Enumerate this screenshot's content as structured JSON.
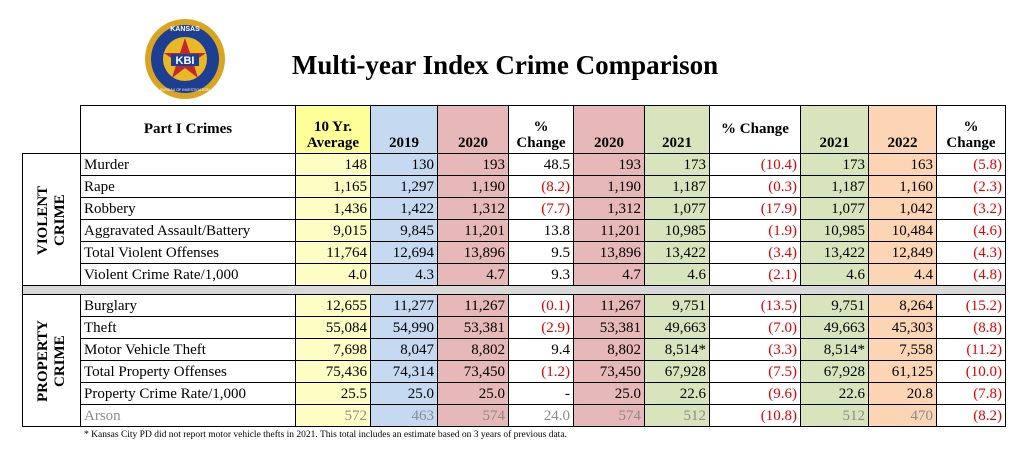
{
  "logo": {
    "top": "KANSAS",
    "abbr": "KBI",
    "bottom": "BUREAU OF INVESTIGATION"
  },
  "title": "Multi-year Index Crime Comparison",
  "table": {
    "header": [
      "Part I Crimes",
      "10 Yr. Average",
      "2019",
      "2020",
      "% Change",
      "2020",
      "2021",
      "% Change",
      "2021",
      "2022",
      "% Change"
    ],
    "groups": [
      {
        "label": "VIOLENT CRIME",
        "rows": [
          {
            "cells": [
              "Murder",
              "148",
              "130",
              "193",
              "48.5",
              "193",
              "173",
              "(10.4)",
              "173",
              "163",
              "(5.8)"
            ]
          },
          {
            "cells": [
              "Rape",
              "1,165",
              "1,297",
              "1,190",
              "(8.2)",
              "1,190",
              "1,187",
              "(0.3)",
              "1,187",
              "1,160",
              "(2.3)"
            ]
          },
          {
            "cells": [
              "Robbery",
              "1,436",
              "1,422",
              "1,312",
              "(7.7)",
              "1,312",
              "1,077",
              "(17.9)",
              "1,077",
              "1,042",
              "(3.2)"
            ]
          },
          {
            "cells": [
              "Aggravated Assault/Battery",
              "9,015",
              "9,845",
              "11,201",
              "13.8",
              "11,201",
              "10,985",
              "(1.9)",
              "10,985",
              "10,484",
              "(4.6)"
            ]
          },
          {
            "cells": [
              "Total Violent Offenses",
              "11,764",
              "12,694",
              "13,896",
              "9.5",
              "13,896",
              "13,422",
              "(3.4)",
              "13,422",
              "12,849",
              "(4.3)"
            ]
          },
          {
            "cells": [
              "Violent Crime Rate/1,000",
              "4.0",
              "4.3",
              "4.7",
              "9.3",
              "4.7",
              "4.6",
              "(2.1)",
              "4.6",
              "4.4",
              "(4.8)"
            ]
          }
        ]
      },
      {
        "label": "PROPERTY CRIME",
        "rows": [
          {
            "cells": [
              "Burglary",
              "12,655",
              "11,277",
              "11,267",
              "(0.1)",
              "11,267",
              "9,751",
              "(13.5)",
              "9,751",
              "8,264",
              "(15.2)"
            ]
          },
          {
            "cells": [
              "Theft",
              "55,084",
              "54,990",
              "53,381",
              "(2.9)",
              "53,381",
              "49,663",
              "(7.0)",
              "49,663",
              "45,303",
              "(8.8)"
            ]
          },
          {
            "cells": [
              "Motor Vehicle Theft",
              "7,698",
              "8,047",
              "8,802",
              "9.4",
              "8,802",
              "8,514*",
              "(3.3)",
              "8,514*",
              "7,558",
              "(11.2)"
            ]
          },
          {
            "cells": [
              "Total Property Offenses",
              "75,436",
              "74,314",
              "73,450",
              "(1.2)",
              "73,450",
              "67,928",
              "(7.5)",
              "67,928",
              "61,125",
              "(10.0)"
            ]
          },
          {
            "cells": [
              "Property Crime Rate/1,000",
              "25.5",
              "25.0",
              "25.0",
              "-",
              "25.0",
              "22.6",
              "(9.6)",
              "22.6",
              "20.8",
              "(7.8)"
            ]
          },
          {
            "cells": [
              "Arson",
              "572",
              "463",
              "574",
              "24.0",
              "574",
              "512",
              "(10.8)",
              "512",
              "470",
              "(8.2)"
            ],
            "muted": true
          }
        ]
      }
    ]
  },
  "footnote": "* Kansas City PD did not report motor vehicle thefts in 2021. This total includes an estimate  based on 3 years of previous data."
}
